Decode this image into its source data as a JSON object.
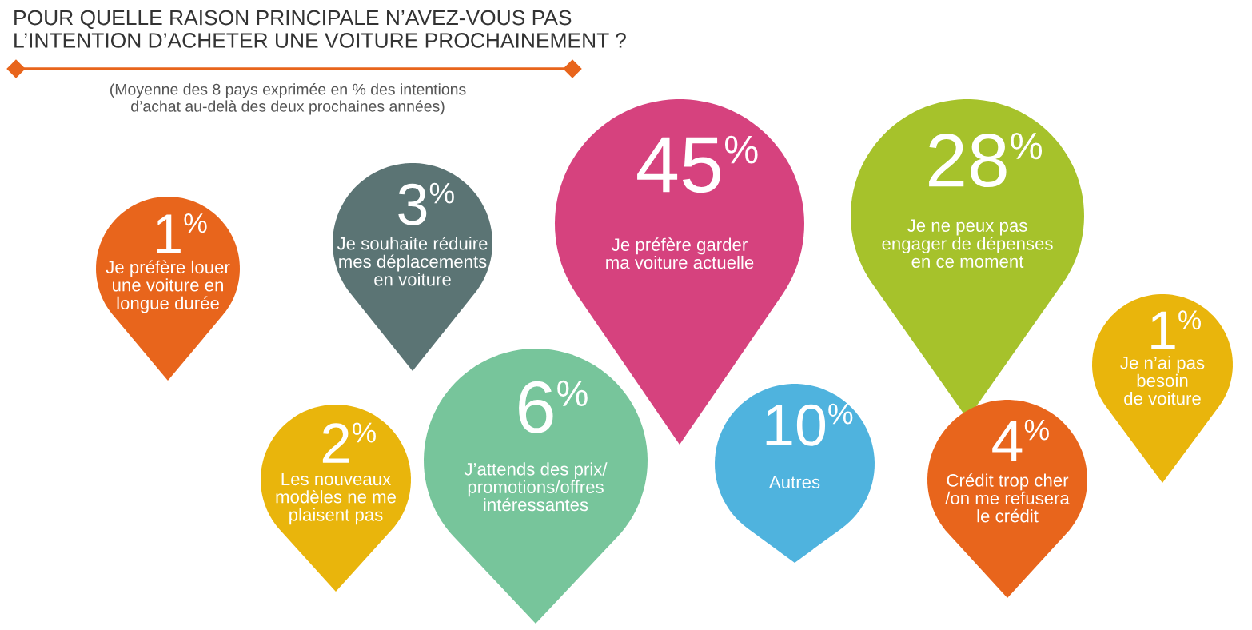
{
  "chart_data": {
    "type": "other",
    "title": "POUR QUELLE RAISON PRINCIPALE N’AVEZ-VOUS PAS\nL’INTENTION D’ACHETER UNE VOITURE PROCHAINEMENT ?",
    "subtitle": "(Moyenne des 8 pays exprimée en % des intentions\nd’achat au-delà des deux prochaines années)",
    "categories": [
      "Je préfère louer\nune voiture en\nlongue durée",
      "Je souhaite réduire\nmes déplacements\nen voiture",
      "Je préfère garder\nma voiture actuelle",
      "Je ne peux pas\nengager de dépenses\nen ce moment",
      "Je n’ai pas\nbesoin\nde voiture",
      "Les nouveaux\nmodèles ne me\nplaisent pas",
      "J’attends des prix/\npromotions/offres\nintéressantes",
      "Autres",
      "Crédit trop cher\n/on me refusera\nle crédit"
    ],
    "values": [
      1,
      3,
      45,
      28,
      1,
      2,
      6,
      10,
      4
    ],
    "value_labels": [
      "1%",
      "3%",
      "45%",
      "28%",
      "1%",
      "2%",
      "6%",
      "10%",
      "4%"
    ],
    "colors": [
      "#e8651c",
      "#5b7474",
      "#d6427e",
      "#a6c22b",
      "#e9b50c",
      "#e9b50c",
      "#77c59b",
      "#4fb3de",
      "#e8651c"
    ]
  }
}
